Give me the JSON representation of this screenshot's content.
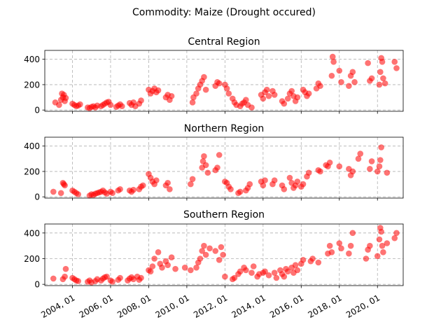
{
  "figure": {
    "suptitle": "Commodity: Maize (Drought occured)"
  },
  "chart_data": {
    "type": "scatter",
    "marker_color": "#ff0000",
    "marker_alpha": 0.55,
    "grid": true,
    "grid_style": "dashed",
    "x_tick_labels": [
      "2004, 01",
      "2006, 01",
      "2008, 01",
      "2010, 01",
      "2012, 01",
      "2014, 01",
      "2016, 01",
      "2018, 01",
      "2020, 01"
    ],
    "x_tick_years": [
      2004,
      2006,
      2008,
      2010,
      2012,
      2014,
      2016,
      2018,
      2020
    ],
    "xlim": [
      2002.55,
      2021.35
    ],
    "ylim": [
      -10,
      470
    ],
    "y_ticks": [
      0,
      200,
      400
    ],
    "y_tick_labels": [
      "0",
      "200",
      "400"
    ],
    "panels": [
      {
        "title": "Central Region",
        "x": [
          2003.1,
          2003.3,
          2003.4,
          2003.45,
          2003.5,
          2003.55,
          2003.6,
          2003.65,
          2004.0,
          2004.1,
          2004.2,
          2004.3,
          2004.4,
          2004.8,
          2004.9,
          2005.0,
          2005.1,
          2005.2,
          2005.3,
          2005.5,
          2005.6,
          2005.7,
          2005.8,
          2005.9,
          2006.0,
          2006.3,
          2006.4,
          2006.5,
          2006.6,
          2007.0,
          2007.1,
          2007.2,
          2007.3,
          2007.5,
          2007.6,
          2008.0,
          2008.1,
          2008.2,
          2008.3,
          2008.4,
          2008.5,
          2008.9,
          2009.0,
          2009.1,
          2009.2,
          2010.3,
          2010.35,
          2010.5,
          2010.6,
          2010.7,
          2010.8,
          2010.9,
          2011.0,
          2011.5,
          2011.6,
          2011.7,
          2012.0,
          2012.1,
          2012.2,
          2012.4,
          2012.5,
          2012.6,
          2012.8,
          2012.9,
          2013.0,
          2013.1,
          2013.2,
          2013.4,
          2013.9,
          2014.0,
          2014.1,
          2014.2,
          2014.3,
          2014.5,
          2014.6,
          2015.0,
          2015.1,
          2015.3,
          2015.4,
          2015.5,
          2015.6,
          2015.7,
          2015.8,
          2016.1,
          2016.2,
          2016.3,
          2016.4,
          2016.8,
          2016.9,
          2017.0,
          2017.6,
          2017.65,
          2017.7,
          2018.0,
          2018.1,
          2018.5,
          2018.6,
          2018.7,
          2018.8,
          2019.5,
          2019.6,
          2019.7,
          2020.1,
          2020.15,
          2020.2,
          2020.25,
          2020.3,
          2020.4,
          2020.9,
          2021.0
        ],
        "y": [
          60,
          40,
          80,
          130,
          100,
          120,
          70,
          95,
          50,
          40,
          30,
          35,
          45,
          20,
          15,
          25,
          30,
          20,
          35,
          30,
          40,
          50,
          60,
          65,
          40,
          25,
          35,
          45,
          30,
          55,
          40,
          60,
          30,
          50,
          75,
          160,
          130,
          150,
          170,
          140,
          155,
          100,
          120,
          80,
          110,
          60,
          100,
          130,
          170,
          200,
          230,
          260,
          160,
          190,
          220,
          210,
          200,
          170,
          130,
          90,
          60,
          40,
          30,
          50,
          60,
          80,
          40,
          20,
          120,
          90,
          140,
          160,
          110,
          150,
          120,
          70,
          50,
          90,
          130,
          150,
          110,
          70,
          100,
          160,
          140,
          110,
          130,
          170,
          210,
          190,
          270,
          420,
          380,
          310,
          220,
          190,
          270,
          300,
          220,
          370,
          230,
          250,
          200,
          300,
          410,
          380,
          250,
          210,
          380,
          330
        ],
        "ylim": [
          -10,
          470
        ],
        "grid": true
      },
      {
        "title": "Northern Region",
        "x": [
          2003.0,
          2003.4,
          2003.5,
          2003.55,
          2003.6,
          2004.0,
          2004.1,
          2004.2,
          2004.3,
          2004.9,
          2005.0,
          2005.1,
          2005.2,
          2005.3,
          2005.4,
          2005.5,
          2005.6,
          2005.7,
          2005.8,
          2006.0,
          2006.1,
          2006.4,
          2006.5,
          2007.0,
          2007.1,
          2007.2,
          2007.5,
          2007.6,
          2007.7,
          2008.0,
          2008.1,
          2008.2,
          2008.3,
          2008.4,
          2008.9,
          2009.0,
          2009.1,
          2010.2,
          2010.3,
          2010.8,
          2010.85,
          2010.9,
          2011.0,
          2011.1,
          2011.5,
          2011.6,
          2011.7,
          2012.0,
          2012.1,
          2012.2,
          2012.3,
          2012.7,
          2012.8,
          2013.1,
          2013.2,
          2013.3,
          2013.9,
          2014.0,
          2014.1,
          2014.5,
          2014.6,
          2015.0,
          2015.1,
          2015.4,
          2015.5,
          2015.6,
          2015.7,
          2015.8,
          2016.0,
          2016.1,
          2016.3,
          2016.4,
          2016.9,
          2017.0,
          2017.3,
          2017.4,
          2017.5,
          2018.0,
          2018.5,
          2018.6,
          2018.7,
          2019.0,
          2019.1,
          2019.6,
          2019.7,
          2020.0,
          2020.1,
          2020.15,
          2020.2,
          2020.5
        ],
        "y": [
          40,
          30,
          110,
          100,
          90,
          50,
          40,
          30,
          20,
          10,
          20,
          15,
          25,
          30,
          35,
          40,
          50,
          35,
          25,
          40,
          30,
          50,
          60,
          50,
          40,
          55,
          60,
          80,
          90,
          180,
          150,
          120,
          100,
          130,
          90,
          110,
          60,
          100,
          140,
          230,
          280,
          320,
          250,
          190,
          210,
          230,
          330,
          120,
          110,
          80,
          60,
          30,
          40,
          50,
          70,
          100,
          120,
          90,
          130,
          100,
          130,
          90,
          60,
          150,
          110,
          70,
          90,
          120,
          80,
          100,
          160,
          190,
          210,
          200,
          250,
          240,
          270,
          240,
          220,
          170,
          200,
          300,
          340,
          220,
          280,
          200,
          240,
          290,
          390,
          190
        ],
        "ylim": [
          -10,
          470
        ],
        "grid": true
      },
      {
        "title": "Southern Region",
        "x": [
          2003.0,
          2003.5,
          2003.6,
          2003.65,
          2004.0,
          2004.1,
          2004.2,
          2004.3,
          2004.8,
          2004.9,
          2005.0,
          2005.2,
          2005.3,
          2005.5,
          2005.6,
          2005.7,
          2005.8,
          2006.0,
          2006.1,
          2006.4,
          2006.5,
          2006.9,
          2007.0,
          2007.1,
          2007.2,
          2007.4,
          2007.5,
          2007.6,
          2008.0,
          2008.1,
          2008.2,
          2008.3,
          2008.5,
          2008.6,
          2008.7,
          2008.9,
          2009.0,
          2009.2,
          2009.4,
          2009.9,
          2010.2,
          2010.5,
          2010.6,
          2010.7,
          2010.8,
          2010.9,
          2011.0,
          2011.2,
          2011.5,
          2011.7,
          2011.8,
          2011.9,
          2012.0,
          2012.4,
          2012.5,
          2012.7,
          2012.8,
          2013.0,
          2013.1,
          2013.4,
          2013.5,
          2013.7,
          2013.8,
          2014.0,
          2014.1,
          2014.3,
          2014.6,
          2014.7,
          2014.9,
          2015.0,
          2015.1,
          2015.2,
          2015.3,
          2015.5,
          2015.6,
          2015.7,
          2015.8,
          2016.0,
          2016.1,
          2016.5,
          2016.6,
          2016.9,
          2017.4,
          2017.5,
          2017.6,
          2018.0,
          2018.1,
          2018.5,
          2018.6,
          2018.7,
          2019.4,
          2019.5,
          2019.6,
          2020.0,
          2020.1,
          2020.15,
          2020.2,
          2020.25,
          2020.3,
          2020.5,
          2020.9,
          2021.0
        ],
        "y": [
          45,
          40,
          60,
          120,
          50,
          40,
          30,
          25,
          20,
          30,
          15,
          25,
          40,
          30,
          45,
          55,
          60,
          30,
          20,
          35,
          50,
          30,
          45,
          55,
          40,
          60,
          35,
          50,
          110,
          100,
          140,
          200,
          250,
          160,
          130,
          180,
          150,
          210,
          120,
          130,
          110,
          130,
          170,
          200,
          260,
          300,
          230,
          280,
          260,
          190,
          290,
          230,
          60,
          40,
          50,
          80,
          100,
          130,
          110,
          90,
          140,
          60,
          80,
          90,
          100,
          70,
          90,
          50,
          110,
          80,
          60,
          120,
          100,
          130,
          90,
          150,
          110,
          160,
          190,
          180,
          200,
          170,
          240,
          300,
          250,
          320,
          280,
          240,
          300,
          400,
          200,
          270,
          300,
          220,
          350,
          440,
          410,
          300,
          250,
          320,
          360,
          400
        ],
        "ylim": [
          -10,
          470
        ],
        "grid": true
      }
    ]
  }
}
